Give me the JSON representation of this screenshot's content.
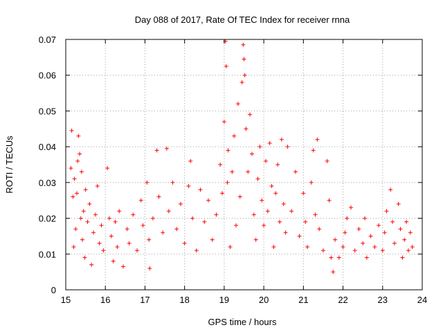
{
  "chart_data": {
    "type": "scatter",
    "title": "Day 088 of 2017, Rate Of TEC Index for receiver rnna",
    "xlabel": "GPS time / hours",
    "ylabel": "ROTI / TECUs",
    "xlim": [
      15,
      24
    ],
    "ylim": [
      0,
      0.07
    ],
    "x_ticks": [
      15,
      16,
      17,
      18,
      19,
      20,
      21,
      22,
      23,
      24
    ],
    "y_ticks": [
      0,
      0.01,
      0.02,
      0.03,
      0.04,
      0.05,
      0.06,
      0.07
    ],
    "x_tick_labels": [
      "15",
      "16",
      "17",
      "18",
      "19",
      "20",
      "21",
      "22",
      "23",
      "24"
    ],
    "y_tick_labels": [
      "0",
      "0.01",
      "0.02",
      "0.03",
      "0.04",
      "0.05",
      "0.06",
      "0.07"
    ],
    "grid": true,
    "marker": "+",
    "marker_color": "#ff0000",
    "series": [
      {
        "name": "ROTI",
        "points": [
          [
            15.13,
            0.034
          ],
          [
            15.15,
            0.0445
          ],
          [
            15.18,
            0.026
          ],
          [
            15.2,
            0.012
          ],
          [
            15.22,
            0.031
          ],
          [
            15.25,
            0.017
          ],
          [
            15.28,
            0.027
          ],
          [
            15.3,
            0.036
          ],
          [
            15.32,
            0.043
          ],
          [
            15.35,
            0.038
          ],
          [
            15.38,
            0.02
          ],
          [
            15.4,
            0.033
          ],
          [
            15.42,
            0.014
          ],
          [
            15.45,
            0.022
          ],
          [
            15.48,
            0.009
          ],
          [
            15.5,
            0.028
          ],
          [
            15.55,
            0.019
          ],
          [
            15.6,
            0.024
          ],
          [
            15.65,
            0.007
          ],
          [
            15.7,
            0.016
          ],
          [
            15.75,
            0.021
          ],
          [
            15.8,
            0.029
          ],
          [
            15.85,
            0.013
          ],
          [
            15.9,
            0.018
          ],
          [
            15.95,
            0.011
          ],
          [
            16.05,
            0.034
          ],
          [
            16.1,
            0.02
          ],
          [
            16.15,
            0.015
          ],
          [
            16.2,
            0.008
          ],
          [
            16.25,
            0.019
          ],
          [
            16.3,
            0.012
          ],
          [
            16.35,
            0.022
          ],
          [
            16.45,
            0.0065
          ],
          [
            16.55,
            0.017
          ],
          [
            16.6,
            0.013
          ],
          [
            16.7,
            0.021
          ],
          [
            16.8,
            0.011
          ],
          [
            16.9,
            0.025
          ],
          [
            16.95,
            0.018
          ],
          [
            17.05,
            0.03
          ],
          [
            17.1,
            0.014
          ],
          [
            17.12,
            0.006
          ],
          [
            17.2,
            0.02
          ],
          [
            17.3,
            0.039
          ],
          [
            17.35,
            0.026
          ],
          [
            17.45,
            0.016
          ],
          [
            17.55,
            0.0395
          ],
          [
            17.6,
            0.022
          ],
          [
            17.7,
            0.03
          ],
          [
            17.8,
            0.017
          ],
          [
            17.9,
            0.024
          ],
          [
            18.0,
            0.013
          ],
          [
            18.1,
            0.029
          ],
          [
            18.15,
            0.036
          ],
          [
            18.2,
            0.02
          ],
          [
            18.3,
            0.011
          ],
          [
            18.4,
            0.028
          ],
          [
            18.5,
            0.019
          ],
          [
            18.6,
            0.025
          ],
          [
            18.7,
            0.014
          ],
          [
            18.8,
            0.021
          ],
          [
            18.9,
            0.035
          ],
          [
            18.95,
            0.027
          ],
          [
            19.0,
            0.047
          ],
          [
            19.03,
            0.0695
          ],
          [
            19.05,
            0.0625
          ],
          [
            19.08,
            0.03
          ],
          [
            19.1,
            0.039
          ],
          [
            19.15,
            0.012
          ],
          [
            19.2,
            0.033
          ],
          [
            19.25,
            0.043
          ],
          [
            19.3,
            0.018
          ],
          [
            19.35,
            0.052
          ],
          [
            19.4,
            0.026
          ],
          [
            19.45,
            0.058
          ],
          [
            19.48,
            0.0685
          ],
          [
            19.5,
            0.0645
          ],
          [
            19.52,
            0.06
          ],
          [
            19.55,
            0.045
          ],
          [
            19.6,
            0.033
          ],
          [
            19.65,
            0.049
          ],
          [
            19.7,
            0.038
          ],
          [
            19.75,
            0.021
          ],
          [
            19.8,
            0.014
          ],
          [
            19.85,
            0.031
          ],
          [
            19.9,
            0.04
          ],
          [
            19.95,
            0.025
          ],
          [
            20.0,
            0.018
          ],
          [
            20.05,
            0.036
          ],
          [
            20.1,
            0.022
          ],
          [
            20.15,
            0.041
          ],
          [
            20.2,
            0.029
          ],
          [
            20.25,
            0.012
          ],
          [
            20.3,
            0.027
          ],
          [
            20.35,
            0.035
          ],
          [
            20.4,
            0.019
          ],
          [
            20.45,
            0.042
          ],
          [
            20.5,
            0.024
          ],
          [
            20.55,
            0.016
          ],
          [
            20.6,
            0.04
          ],
          [
            20.7,
            0.022
          ],
          [
            20.8,
            0.033
          ],
          [
            20.9,
            0.015
          ],
          [
            21.0,
            0.027
          ],
          [
            21.05,
            0.019
          ],
          [
            21.1,
            0.012
          ],
          [
            21.2,
            0.03
          ],
          [
            21.25,
            0.039
          ],
          [
            21.3,
            0.021
          ],
          [
            21.35,
            0.042
          ],
          [
            21.4,
            0.017
          ],
          [
            21.5,
            0.011
          ],
          [
            21.6,
            0.036
          ],
          [
            21.65,
            0.025
          ],
          [
            21.7,
            0.009
          ],
          [
            21.75,
            0.005
          ],
          [
            21.8,
            0.014
          ],
          [
            21.9,
            0.009
          ],
          [
            22.0,
            0.012
          ],
          [
            22.05,
            0.016
          ],
          [
            22.1,
            0.02
          ],
          [
            22.2,
            0.023
          ],
          [
            22.3,
            0.011
          ],
          [
            22.4,
            0.017
          ],
          [
            22.5,
            0.013
          ],
          [
            22.55,
            0.02
          ],
          [
            22.6,
            0.009
          ],
          [
            22.7,
            0.015
          ],
          [
            22.8,
            0.012
          ],
          [
            22.9,
            0.018
          ],
          [
            23.0,
            0.011
          ],
          [
            23.05,
            0.016
          ],
          [
            23.1,
            0.022
          ],
          [
            23.2,
            0.028
          ],
          [
            23.25,
            0.019
          ],
          [
            23.3,
            0.013
          ],
          [
            23.4,
            0.024
          ],
          [
            23.45,
            0.017
          ],
          [
            23.5,
            0.009
          ],
          [
            23.55,
            0.014
          ],
          [
            23.6,
            0.019
          ],
          [
            23.65,
            0.011
          ],
          [
            23.7,
            0.016
          ],
          [
            23.75,
            0.012
          ]
        ]
      }
    ]
  }
}
